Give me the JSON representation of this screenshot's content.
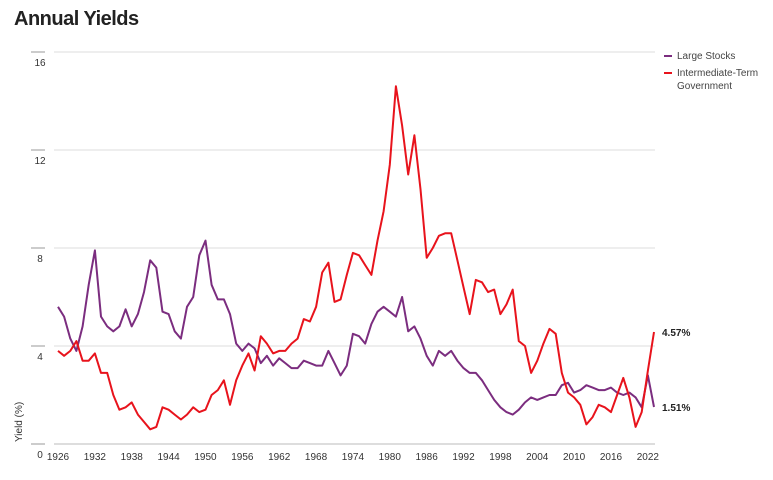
{
  "title": "Annual Yields",
  "legend": [
    {
      "label": "Large Stocks",
      "color": "#7b2d7f"
    },
    {
      "label": "Intermediate-Term",
      "label2": "Government",
      "color": "#e8131c"
    }
  ],
  "chart_data": {
    "type": "line",
    "title": "Annual Yields",
    "xlabel": "",
    "ylabel": "Yield (%)",
    "ylim": [
      0,
      16
    ],
    "yticks": [
      "0",
      "4",
      "8",
      "12",
      "16"
    ],
    "yticks_values": [
      0,
      4,
      8,
      12,
      16
    ],
    "xticks": [
      "1926",
      "1932",
      "1938",
      "1944",
      "1950",
      "1956",
      "1962",
      "1968",
      "1974",
      "1980",
      "1986",
      "1992",
      "1998",
      "2004",
      "2010",
      "2016",
      "2022"
    ],
    "x_start": 1926,
    "x_end": 2023,
    "grid": true,
    "legend_position": "top-right",
    "series": [
      {
        "name": "Large Stocks",
        "color": "#7b2d7f",
        "end_label": "1.51%",
        "values": [
          5.6,
          5.2,
          4.3,
          3.8,
          4.8,
          6.5,
          7.9,
          5.2,
          4.8,
          4.6,
          4.8,
          5.5,
          4.8,
          5.3,
          6.2,
          7.5,
          7.2,
          5.4,
          5.3,
          4.6,
          4.3,
          5.6,
          6.0,
          7.7,
          8.3,
          6.5,
          5.9,
          5.9,
          5.3,
          4.1,
          3.8,
          4.1,
          3.9,
          3.3,
          3.6,
          3.2,
          3.5,
          3.3,
          3.1,
          3.1,
          3.4,
          3.3,
          3.2,
          3.2,
          3.8,
          3.3,
          2.8,
          3.2,
          4.5,
          4.4,
          4.1,
          4.9,
          5.4,
          5.6,
          5.4,
          5.2,
          6.0,
          4.6,
          4.8,
          4.3,
          3.6,
          3.2,
          3.8,
          3.6,
          3.8,
          3.4,
          3.1,
          2.9,
          2.9,
          2.6,
          2.2,
          1.8,
          1.5,
          1.3,
          1.2,
          1.4,
          1.7,
          1.9,
          1.8,
          1.9,
          2.0,
          2.0,
          2.4,
          2.5,
          2.1,
          2.2,
          2.4,
          2.3,
          2.2,
          2.2,
          2.3,
          2.1,
          2.0,
          2.1,
          1.9,
          1.5,
          2.8,
          1.51
        ]
      },
      {
        "name": "Intermediate-Term Government",
        "color": "#e8131c",
        "end_label": "4.57%",
        "values": [
          3.8,
          3.6,
          3.8,
          4.2,
          3.4,
          3.4,
          3.7,
          2.9,
          2.9,
          2.0,
          1.4,
          1.5,
          1.7,
          1.2,
          0.9,
          0.6,
          0.7,
          1.5,
          1.4,
          1.2,
          1.0,
          1.2,
          1.5,
          1.3,
          1.4,
          2.0,
          2.2,
          2.6,
          1.6,
          2.6,
          3.2,
          3.7,
          3.0,
          4.4,
          4.1,
          3.7,
          3.8,
          3.8,
          4.1,
          4.3,
          5.1,
          5.0,
          5.6,
          7.0,
          7.4,
          5.8,
          5.9,
          6.9,
          7.8,
          7.7,
          7.3,
          6.9,
          8.3,
          9.5,
          11.4,
          14.6,
          13.0,
          11.0,
          12.6,
          10.4,
          7.6,
          8.0,
          8.5,
          8.6,
          8.6,
          7.5,
          6.4,
          5.3,
          6.7,
          6.6,
          6.2,
          6.3,
          5.3,
          5.7,
          6.3,
          4.2,
          4.0,
          2.9,
          3.4,
          4.1,
          4.7,
          4.5,
          2.9,
          2.1,
          1.9,
          1.6,
          0.8,
          1.1,
          1.6,
          1.5,
          1.3,
          2.0,
          2.7,
          1.9,
          0.7,
          1.3,
          3.0,
          4.57
        ]
      }
    ]
  }
}
